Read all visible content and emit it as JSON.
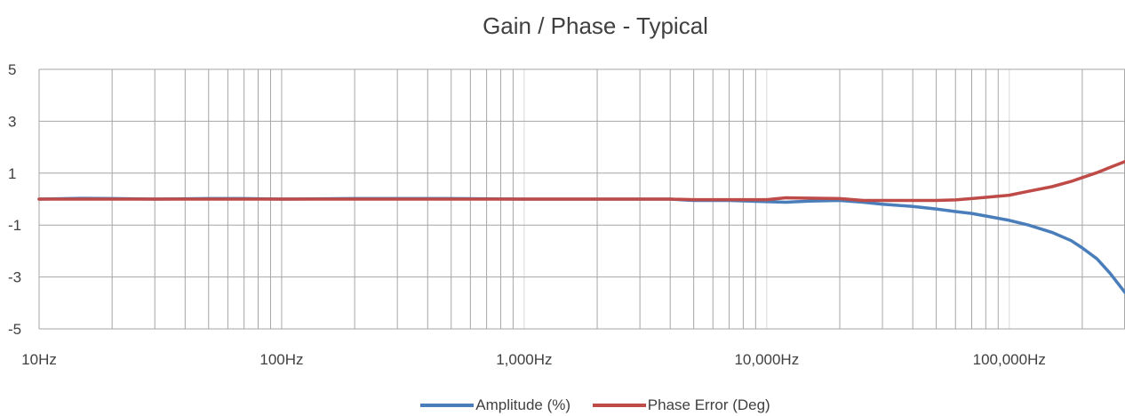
{
  "chart_data": {
    "type": "line",
    "title": "Gain / Phase - Typical",
    "xlabel": "",
    "ylabel": "",
    "x_scale": "log",
    "xlim": [
      10,
      300000
    ],
    "ylim": [
      -5,
      5
    ],
    "grid": true,
    "legend_position": "bottom",
    "y_ticks": [
      "5",
      "3",
      "1",
      "-1",
      "-3",
      "-5"
    ],
    "y_tick_values": [
      5,
      3,
      1,
      -1,
      -3,
      -5
    ],
    "x_ticks": [
      "10Hz",
      "100Hz",
      "1,000Hz",
      "10,000Hz",
      "100,000Hz"
    ],
    "x_tick_values": [
      10,
      100,
      1000,
      10000,
      100000
    ],
    "series": [
      {
        "name": "Amplitude (%)",
        "color": "#4A7EBB",
        "x": [
          10,
          15,
          20,
          30,
          50,
          70,
          100,
          200,
          300,
          500,
          1000,
          2000,
          3000,
          4000,
          5000,
          7000,
          10000,
          12000,
          15000,
          20000,
          25000,
          30000,
          40000,
          50000,
          60000,
          70000,
          80000,
          100000,
          120000,
          150000,
          180000,
          200000,
          230000,
          260000,
          300000
        ],
        "y": [
          0.0,
          0.03,
          0.02,
          0.0,
          0.02,
          0.02,
          0.0,
          0.02,
          0.02,
          0.02,
          0.0,
          0.0,
          0.0,
          0.0,
          -0.05,
          -0.05,
          -0.1,
          -0.12,
          -0.08,
          -0.05,
          -0.12,
          -0.2,
          -0.28,
          -0.38,
          -0.48,
          -0.55,
          -0.65,
          -0.82,
          -1.0,
          -1.28,
          -1.6,
          -1.88,
          -2.3,
          -2.85,
          -3.6
        ]
      },
      {
        "name": "Phase Error (Deg)",
        "color": "#BE4B48",
        "x": [
          10,
          20,
          100,
          1000,
          4000,
          5000,
          10000,
          12000,
          20000,
          25000,
          30000,
          50000,
          60000,
          70000,
          80000,
          100000,
          120000,
          150000,
          180000,
          200000,
          230000,
          260000,
          300000
        ],
        "y": [
          0.0,
          0.0,
          0.0,
          0.0,
          0.0,
          -0.02,
          -0.02,
          0.05,
          0.02,
          -0.05,
          -0.05,
          -0.05,
          -0.03,
          0.02,
          0.07,
          0.15,
          0.3,
          0.48,
          0.68,
          0.83,
          1.02,
          1.22,
          1.45
        ]
      }
    ]
  }
}
